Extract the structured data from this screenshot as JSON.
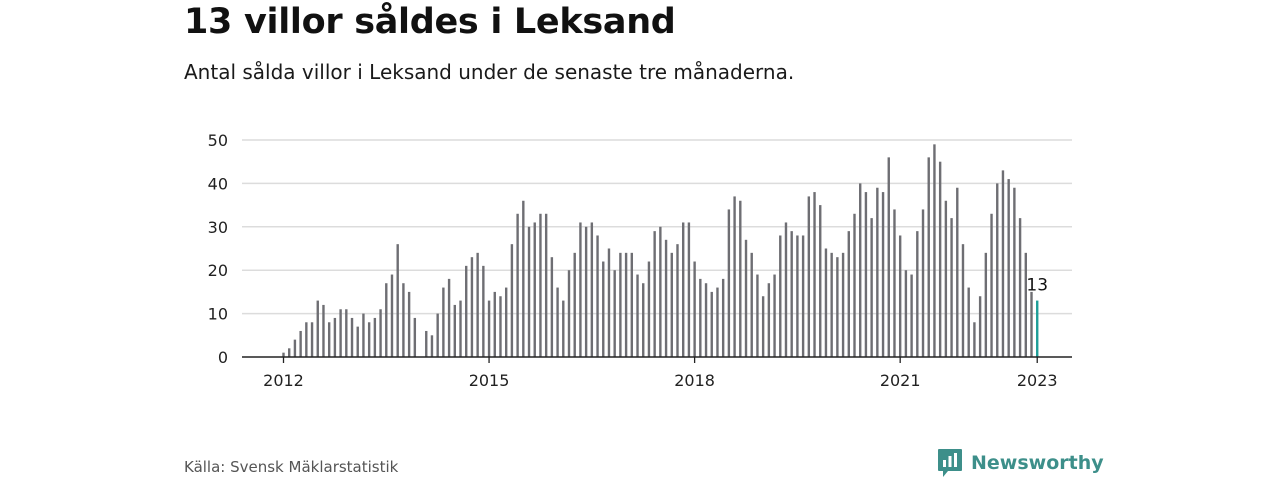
{
  "header": {
    "title": "13 villor såldes i Leksand",
    "subtitle": "Antal sålda villor i Leksand under de senaste tre månaderna."
  },
  "footer": {
    "source": "Källa: Svensk Mäklarstatistik",
    "brand": "Newsworthy",
    "brand_icon": "bar-chart-speech-bubble-icon"
  },
  "colors": {
    "bar": "#6e6e73",
    "highlight": "#1f9e98",
    "grid": "#dcdcdc",
    "axis": "#222222",
    "brand": "#3d8f8a"
  },
  "chart_data": {
    "type": "bar",
    "title": "13 villor såldes i Leksand",
    "subtitle": "Antal sålda villor i Leksand under de senaste tre månaderna.",
    "xlabel": "",
    "ylabel": "",
    "ylim": [
      0,
      50
    ],
    "yticks": [
      0,
      10,
      20,
      30,
      40,
      50
    ],
    "xticks": [
      {
        "label": "2012",
        "month_index": 0
      },
      {
        "label": "2015",
        "month_index": 36
      },
      {
        "label": "2018",
        "month_index": 72
      },
      {
        "label": "2021",
        "month_index": 108
      },
      {
        "label": "2023",
        "month_index": 132
      }
    ],
    "grid": true,
    "start_label": "2012",
    "end_label": "2023",
    "highlight_label": "13",
    "series": [
      {
        "values": [
          1,
          2,
          4,
          6,
          8,
          8,
          13,
          12,
          8,
          9,
          11,
          11,
          9,
          7,
          10,
          8,
          9,
          11,
          17,
          19,
          26,
          17,
          15,
          9,
          0,
          6,
          5,
          10,
          16,
          18,
          12,
          13,
          21,
          23,
          24,
          21,
          13,
          15,
          14,
          16,
          26,
          33,
          36,
          30,
          31,
          33,
          33,
          23,
          16,
          13,
          20,
          24,
          31,
          30,
          31,
          28,
          22,
          25,
          20,
          24,
          24,
          24,
          19,
          17,
          22,
          29,
          30,
          27,
          24,
          26,
          31,
          31,
          22,
          18,
          17,
          15,
          16,
          18,
          34,
          37,
          36,
          27,
          24,
          19,
          14,
          17,
          19,
          28,
          31,
          29,
          28,
          28,
          37,
          38,
          35,
          25,
          24,
          23,
          24,
          29,
          33,
          40,
          38,
          32,
          39,
          38,
          46,
          34,
          28,
          20,
          19,
          29,
          34,
          46,
          49,
          45,
          36,
          32,
          39,
          26,
          16,
          8,
          14,
          24,
          33,
          40,
          43,
          41,
          39,
          32,
          24,
          15,
          13
        ]
      }
    ]
  }
}
